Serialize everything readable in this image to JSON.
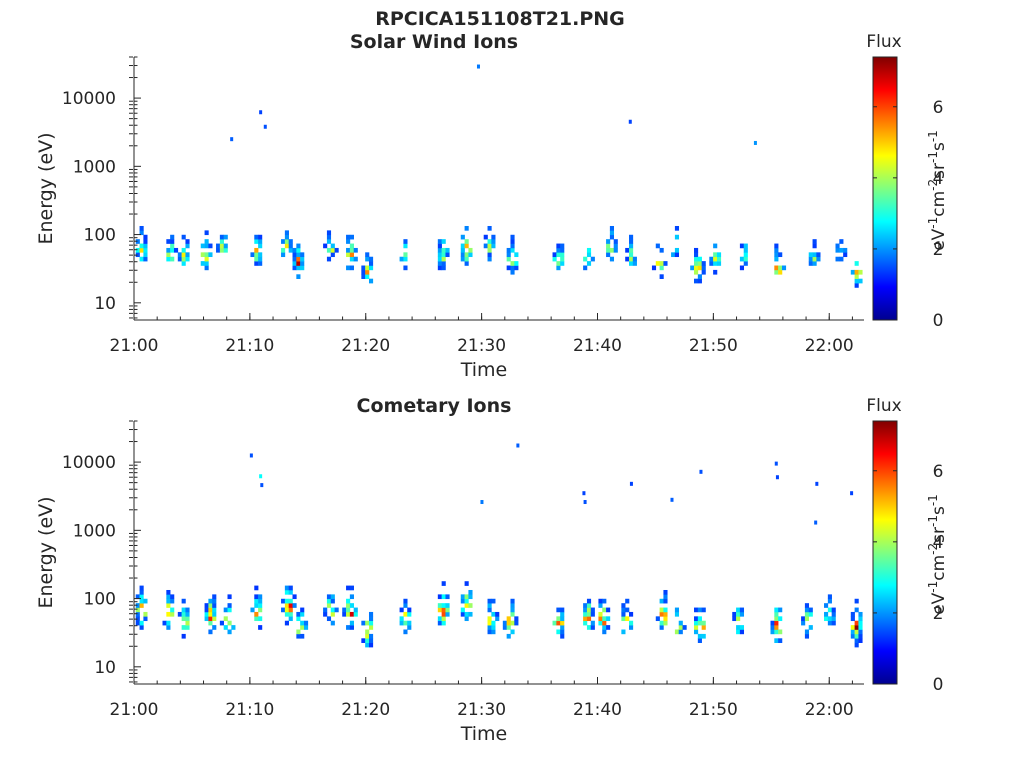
{
  "figure_title": "RPCICA151108T21.PNG",
  "colors": {
    "colormap": [
      "#00008f",
      "#0000ff",
      "#0080ff",
      "#00ffff",
      "#80ff80",
      "#ffff00",
      "#ff8000",
      "#ff0000",
      "#800000"
    ],
    "axis": "#262626",
    "background": "#ffffff"
  },
  "chart_data": [
    {
      "type": "heatmap",
      "title": "Solar Wind Ions",
      "xlabel": "Time",
      "ylabel": "Energy (eV)",
      "y_scale": "log",
      "ylim": [
        5.6,
        40000
      ],
      "xlim": [
        "21:00",
        "22:03"
      ],
      "x_ticks": [
        "21:00",
        "21:10",
        "21:20",
        "21:30",
        "21:40",
        "21:50",
        "22:00"
      ],
      "y_ticks": [
        10,
        100,
        1000,
        10000
      ],
      "y_tick_labels": [
        "10",
        "100",
        "1000",
        "10000"
      ],
      "colorbar": {
        "label": "Flux",
        "units": "eV-1cm-2sr-1s-1",
        "range": [
          0,
          7.4
        ],
        "ticks": [
          0,
          2,
          4,
          6
        ],
        "tick_labels": [
          "0",
          "2",
          "4",
          "6"
        ]
      },
      "bursts": [
        {
          "t": 0.5,
          "e": 55,
          "amp": 4.8
        },
        {
          "t": 3.0,
          "e": 50,
          "amp": 4.7
        },
        {
          "t": 4.2,
          "e": 45,
          "amp": 4.4
        },
        {
          "t": 6.0,
          "e": 45,
          "amp": 5.0
        },
        {
          "t": 7.5,
          "e": 60,
          "amp": 4.2
        },
        {
          "t": 10.5,
          "e": 50,
          "amp": 5.2
        },
        {
          "t": 13.0,
          "e": 60,
          "amp": 5.4
        },
        {
          "t": 14.0,
          "e": 35,
          "amp": 5.6
        },
        {
          "t": 16.8,
          "e": 55,
          "amp": 4.3
        },
        {
          "t": 18.5,
          "e": 45,
          "amp": 5.8
        },
        {
          "t": 20.0,
          "e": 25,
          "amp": 5.2
        },
        {
          "t": 23.2,
          "e": 45,
          "amp": 4.2
        },
        {
          "t": 26.5,
          "e": 45,
          "amp": 5.4
        },
        {
          "t": 28.5,
          "e": 55,
          "amp": 5.9
        },
        {
          "t": 30.5,
          "e": 60,
          "amp": 4.3
        },
        {
          "t": 32.5,
          "e": 40,
          "amp": 5.4
        },
        {
          "t": 36.5,
          "e": 40,
          "amp": 4.8
        },
        {
          "t": 39.0,
          "e": 40,
          "amp": 4.4
        },
        {
          "t": 41.0,
          "e": 55,
          "amp": 5.5
        },
        {
          "t": 42.8,
          "e": 45,
          "amp": 4.5
        },
        {
          "t": 45.2,
          "e": 35,
          "amp": 5.2
        },
        {
          "t": 46.5,
          "e": 60,
          "amp": 4.6
        },
        {
          "t": 48.5,
          "e": 30,
          "amp": 6.1
        },
        {
          "t": 50.0,
          "e": 40,
          "amp": 4.5
        },
        {
          "t": 52.5,
          "e": 45,
          "amp": 4.0
        },
        {
          "t": 55.5,
          "e": 30,
          "amp": 5.9
        },
        {
          "t": 58.5,
          "e": 40,
          "amp": 4.0
        },
        {
          "t": 60.8,
          "e": 50,
          "amp": 4.0
        },
        {
          "t": 62.3,
          "e": 25,
          "amp": 5.0
        }
      ],
      "outliers": [
        {
          "t": 8.3,
          "e": 2500,
          "v": 1.6
        },
        {
          "t": 10.8,
          "e": 6200,
          "v": 1.4
        },
        {
          "t": 11.2,
          "e": 3800,
          "v": 1.5
        },
        {
          "t": 29.6,
          "e": 29000,
          "v": 1.8
        },
        {
          "t": 42.7,
          "e": 4500,
          "v": 1.4
        },
        {
          "t": 53.5,
          "e": 2200,
          "v": 2.0
        }
      ]
    },
    {
      "type": "heatmap",
      "title": "Cometary Ions",
      "xlabel": "Time",
      "ylabel": "Energy (eV)",
      "y_scale": "log",
      "ylim": [
        5.6,
        40000
      ],
      "xlim": [
        "21:00",
        "22:03"
      ],
      "x_ticks": [
        "21:00",
        "21:10",
        "21:20",
        "21:30",
        "21:40",
        "21:50",
        "22:00"
      ],
      "y_ticks": [
        10,
        100,
        1000,
        10000
      ],
      "y_tick_labels": [
        "10",
        "100",
        "1000",
        "10000"
      ],
      "colorbar": {
        "label": "Flux",
        "units": "eV-1cm-2sr-1s-1",
        "range": [
          0,
          7.4
        ],
        "ticks": [
          0,
          2,
          4,
          6
        ],
        "tick_labels": [
          "0",
          "2",
          "4",
          "6"
        ]
      },
      "bursts": [
        {
          "t": 0.5,
          "e": 60,
          "amp": 6.4
        },
        {
          "t": 2.8,
          "e": 55,
          "amp": 6.2
        },
        {
          "t": 4.2,
          "e": 40,
          "amp": 5.2
        },
        {
          "t": 6.5,
          "e": 50,
          "amp": 6.3
        },
        {
          "t": 8.0,
          "e": 40,
          "amp": 6.0
        },
        {
          "t": 10.5,
          "e": 55,
          "amp": 6.0
        },
        {
          "t": 13.2,
          "e": 70,
          "amp": 6.5
        },
        {
          "t": 14.2,
          "e": 35,
          "amp": 5.5
        },
        {
          "t": 16.8,
          "e": 60,
          "amp": 5.4
        },
        {
          "t": 18.5,
          "e": 55,
          "amp": 6.9
        },
        {
          "t": 20.0,
          "e": 30,
          "amp": 6.4
        },
        {
          "t": 23.3,
          "e": 45,
          "amp": 5.4
        },
        {
          "t": 26.5,
          "e": 60,
          "amp": 6.6
        },
        {
          "t": 28.6,
          "e": 70,
          "amp": 7.0
        },
        {
          "t": 30.7,
          "e": 45,
          "amp": 5.4
        },
        {
          "t": 32.3,
          "e": 40,
          "amp": 6.6
        },
        {
          "t": 36.5,
          "e": 40,
          "amp": 5.6
        },
        {
          "t": 39.0,
          "e": 45,
          "amp": 6.6
        },
        {
          "t": 40.3,
          "e": 45,
          "amp": 6.3
        },
        {
          "t": 42.3,
          "e": 40,
          "amp": 5.6
        },
        {
          "t": 45.5,
          "e": 50,
          "amp": 6.4
        },
        {
          "t": 46.8,
          "e": 35,
          "amp": 5.2
        },
        {
          "t": 48.7,
          "e": 35,
          "amp": 6.9
        },
        {
          "t": 52.0,
          "e": 40,
          "amp": 5.4
        },
        {
          "t": 55.4,
          "e": 35,
          "amp": 7.2
        },
        {
          "t": 58.0,
          "e": 40,
          "amp": 5.3
        },
        {
          "t": 59.8,
          "e": 50,
          "amp": 4.6
        },
        {
          "t": 62.2,
          "e": 35,
          "amp": 6.3
        }
      ],
      "outliers": [
        {
          "t": 10.0,
          "e": 12500,
          "v": 1.5
        },
        {
          "t": 10.8,
          "e": 6200,
          "v": 2.8
        },
        {
          "t": 10.9,
          "e": 4600,
          "v": 1.5
        },
        {
          "t": 29.9,
          "e": 2600,
          "v": 1.8
        },
        {
          "t": 33.0,
          "e": 17500,
          "v": 1.6
        },
        {
          "t": 38.7,
          "e": 3500,
          "v": 1.4
        },
        {
          "t": 38.8,
          "e": 2600,
          "v": 1.5
        },
        {
          "t": 42.8,
          "e": 4800,
          "v": 1.4
        },
        {
          "t": 46.3,
          "e": 2800,
          "v": 1.6
        },
        {
          "t": 48.8,
          "e": 7200,
          "v": 1.5
        },
        {
          "t": 55.3,
          "e": 9500,
          "v": 1.5
        },
        {
          "t": 55.4,
          "e": 6000,
          "v": 1.4
        },
        {
          "t": 58.8,
          "e": 4800,
          "v": 1.4
        },
        {
          "t": 58.7,
          "e": 1300,
          "v": 1.6
        },
        {
          "t": 61.8,
          "e": 3500,
          "v": 1.4
        }
      ]
    }
  ]
}
